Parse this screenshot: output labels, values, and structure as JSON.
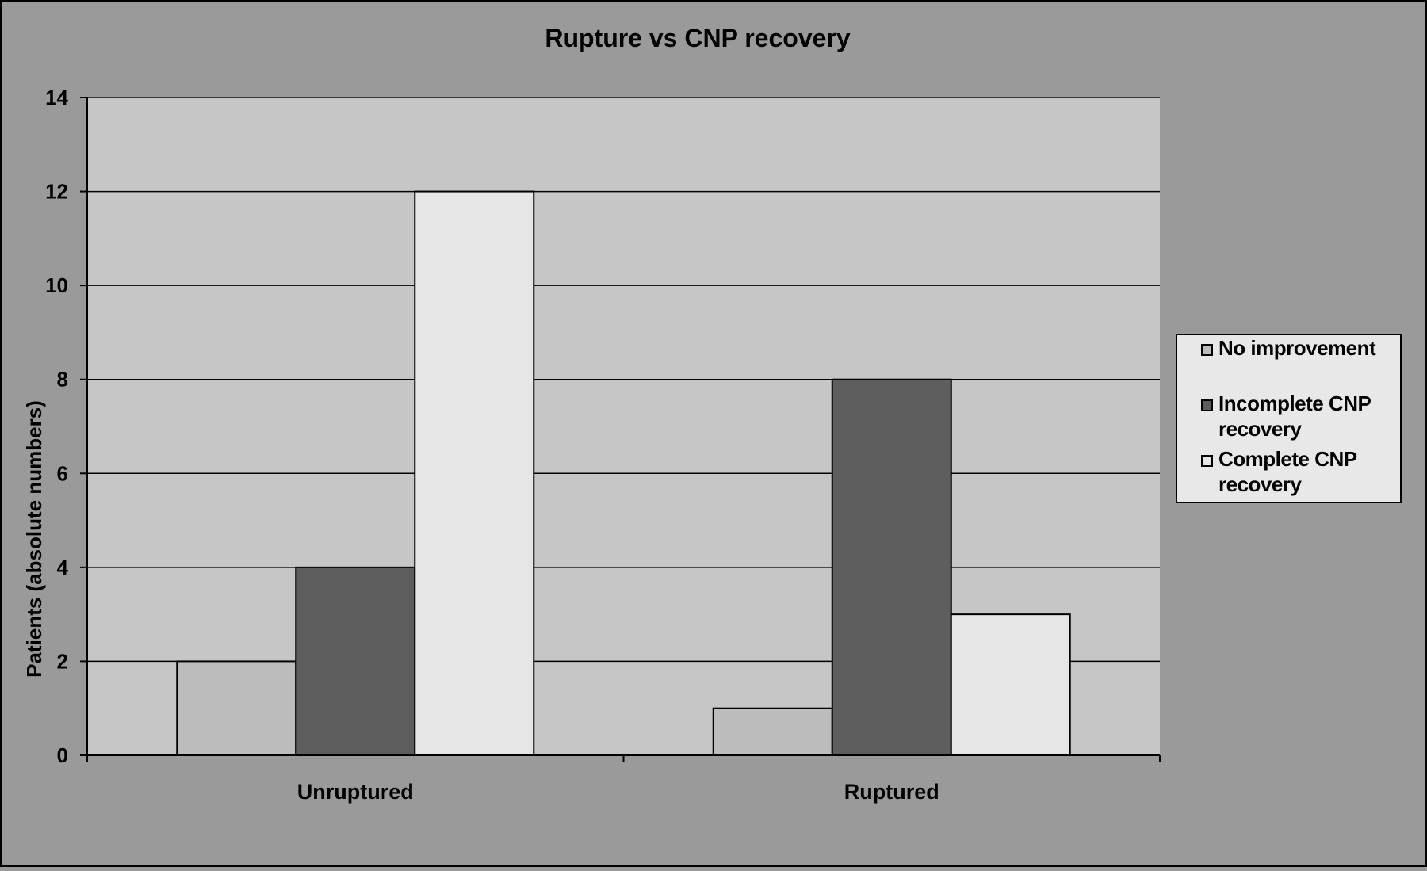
{
  "chart_data": {
    "type": "bar",
    "title": "Rupture vs CNP recovery",
    "xlabel": "",
    "ylabel": "Patients (absolute numbers)",
    "categories": [
      "Unruptured",
      "Ruptured"
    ],
    "ylim": [
      0,
      14
    ],
    "yticks": [
      0,
      2,
      4,
      6,
      8,
      10,
      12,
      14
    ],
    "grid": true,
    "legend_position": "right",
    "series": [
      {
        "name": "No improvement",
        "legend_lines": [
          "No improvement"
        ],
        "values": [
          2,
          1
        ],
        "color": "#bcbcbc"
      },
      {
        "name": "Incomplete CNP recovery",
        "legend_lines": [
          "Incomplete CNP",
          "recovery"
        ],
        "values": [
          4,
          8
        ],
        "color": "#5e5e5e"
      },
      {
        "name": "Complete CNP recovery",
        "legend_lines": [
          "Complete CNP",
          "recovery"
        ],
        "values": [
          12,
          3
        ],
        "color": "#e6e6e6"
      }
    ],
    "colors": {
      "background": "#9a9a9a",
      "plot_area": "#c6c6c6",
      "gridline": "#000000",
      "legend_bg": "#e8e8e8"
    }
  }
}
